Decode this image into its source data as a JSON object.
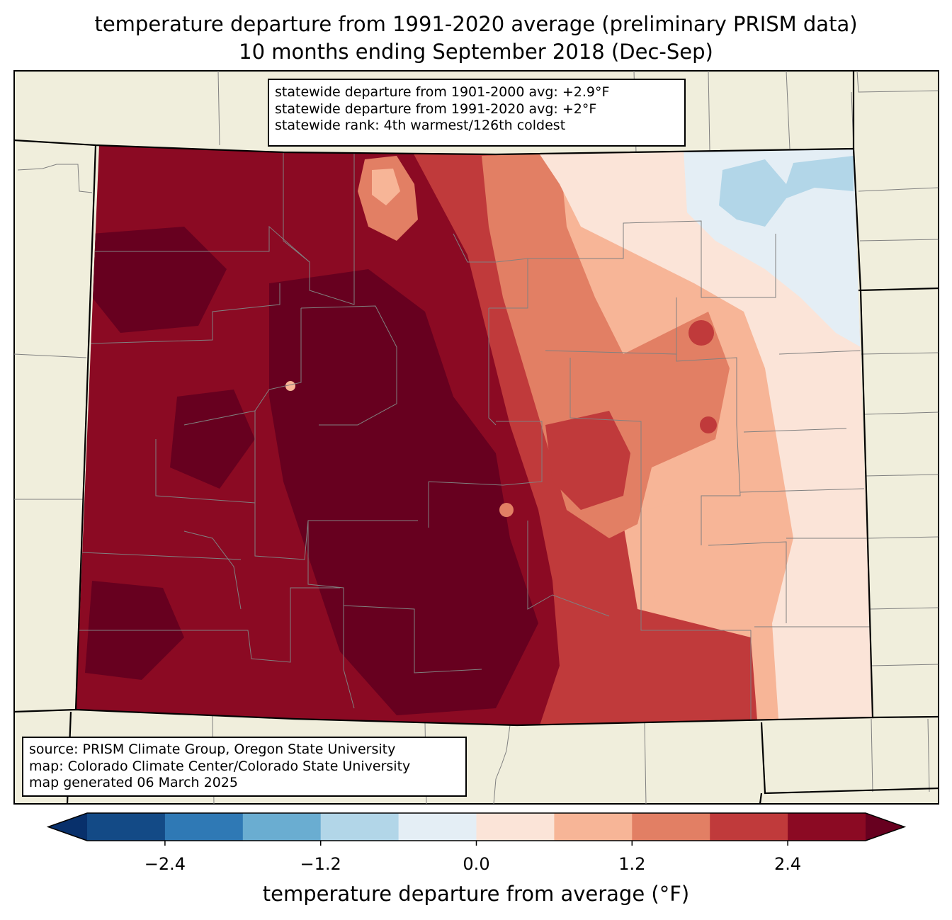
{
  "title": {
    "line1": "temperature departure from 1991-2020 average (preliminary PRISM data)",
    "line2": "10 months ending September 2018 (Dec-Sep)"
  },
  "stats_box": {
    "line1": "statewide departure from 1901-2000 avg: +2.9°F",
    "line2": "statewide departure from 1991-2020 avg: +2°F",
    "line3": "statewide rank: 4th warmest/126th coldest"
  },
  "credits_box": {
    "line1": "source: PRISM Climate Group, Oregon State University",
    "line2": "map: Colorado Climate Center/Colorado State University",
    "line3": "map generated 06 March 2025"
  },
  "colorbar": {
    "label": "temperature departure from average (°F)",
    "range": [
      -3.0,
      3.0
    ],
    "bin_width": 0.6,
    "ticks": [
      "−2.4",
      "−1.2",
      "0.0",
      "1.2",
      "2.4"
    ],
    "tick_values": [
      -2.4,
      -1.2,
      0.0,
      1.2,
      2.4
    ],
    "under_color": "#08306b",
    "over_color": "#67001f",
    "bin_colors": [
      "#134a86",
      "#2f79b5",
      "#6aadd1",
      "#b2d6e8",
      "#e4eef5",
      "#fbe4d8",
      "#f7b597",
      "#e27f64",
      "#c03a3b",
      "#8b0a23"
    ]
  },
  "colors": {
    "land": "#f0eedc",
    "state_border": "#000000",
    "county_border": "#808080"
  }
}
